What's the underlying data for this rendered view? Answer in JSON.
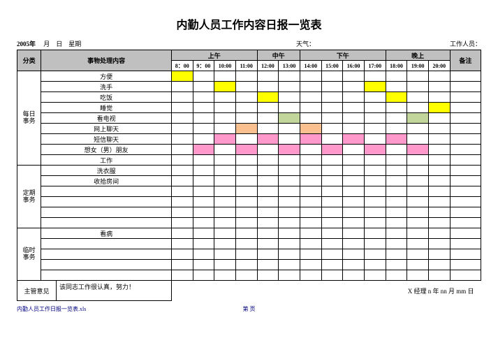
{
  "title": "内勤人员工作内容日报一览表",
  "info": {
    "year_label": "2005年",
    "month_label": "月",
    "day_label": "日",
    "weekday_label": "星期",
    "weather_label": "天气：",
    "staff_label": "工作人员："
  },
  "headers": {
    "category": "分类",
    "content": "事物处理内容",
    "morning": "上午",
    "noon": "中午",
    "afternoon": "下午",
    "evening": "晚上",
    "note": "备注"
  },
  "time_slots": [
    "8：00",
    "9：00",
    "10:00",
    "11:00",
    "12:00",
    "13:00",
    "14:00",
    "15:00",
    "16:00",
    "17:00",
    "18:00",
    "19:00",
    "20:00"
  ],
  "colors": {
    "yellow": "#ffff00",
    "orange": "#fac08f",
    "lightgreen": "#c2d69b",
    "pink": "#ff99cc",
    "headerGray": "#c0c0c0",
    "white": "#ffffff"
  },
  "sections": [
    {
      "label": "每日\n事务",
      "rows": [
        {
          "content": "方便",
          "cells": [
            "yellow",
            "",
            "",
            "",
            "",
            "",
            "",
            "",
            "",
            "",
            "",
            "",
            ""
          ]
        },
        {
          "content": "洗手",
          "cells": [
            "",
            "",
            "yellow",
            "",
            "",
            "",
            "",
            "",
            "",
            "yellow",
            "",
            "",
            ""
          ]
        },
        {
          "content": "吃饭",
          "cells": [
            "",
            "",
            "",
            "",
            "yellow",
            "",
            "",
            "",
            "",
            "",
            "yellow",
            "",
            ""
          ]
        },
        {
          "content": "睡觉",
          "cells": [
            "",
            "",
            "",
            "",
            "",
            "",
            "",
            "",
            "",
            "",
            "",
            "",
            "yellow"
          ]
        },
        {
          "content": "看电视",
          "cells": [
            "",
            "",
            "",
            "",
            "",
            "lightgreen",
            "",
            "",
            "",
            "",
            "",
            "lightgreen",
            ""
          ]
        },
        {
          "content": "网上聊天",
          "cells": [
            "",
            "",
            "",
            "orange",
            "",
            "",
            "orange",
            "",
            "",
            "",
            "",
            "",
            ""
          ]
        },
        {
          "content": "短信聊天",
          "cells": [
            "",
            "",
            "pink",
            "",
            "pink",
            "",
            "pink",
            "",
            "pink",
            "",
            "pink",
            "",
            ""
          ]
        },
        {
          "content": "想女（男）朋友",
          "cells": [
            "",
            "pink",
            "",
            "pink",
            "",
            "pink",
            "",
            "pink",
            "",
            "pink",
            "",
            "pink",
            ""
          ]
        },
        {
          "content": "工作",
          "cells": [
            "",
            "",
            "",
            "",
            "",
            "",
            "",
            "",
            "",
            "",
            "",
            "",
            ""
          ]
        }
      ]
    },
    {
      "label": "定期\n事务",
      "rows": [
        {
          "content": "洗衣服",
          "cells": [
            "",
            "",
            "",
            "",
            "",
            "",
            "",
            "",
            "",
            "",
            "",
            "",
            ""
          ]
        },
        {
          "content": "收拾房间",
          "cells": [
            "",
            "",
            "",
            "",
            "",
            "",
            "",
            "",
            "",
            "",
            "",
            "",
            ""
          ]
        },
        {
          "content": "",
          "cells": [
            "",
            "",
            "",
            "",
            "",
            "",
            "",
            "",
            "",
            "",
            "",
            "",
            ""
          ]
        },
        {
          "content": "",
          "cells": [
            "",
            "",
            "",
            "",
            "",
            "",
            "",
            "",
            "",
            "",
            "",
            "",
            ""
          ]
        },
        {
          "content": "",
          "cells": [
            "",
            "",
            "",
            "",
            "",
            "",
            "",
            "",
            "",
            "",
            "",
            "",
            ""
          ]
        },
        {
          "content": "",
          "cells": [
            "",
            "",
            "",
            "",
            "",
            "",
            "",
            "",
            "",
            "",
            "",
            "",
            ""
          ]
        }
      ]
    },
    {
      "label": "临时\n事务",
      "rows": [
        {
          "content": "看病",
          "cells": [
            "",
            "",
            "",
            "",
            "",
            "",
            "",
            "",
            "",
            "",
            "",
            "",
            ""
          ]
        },
        {
          "content": "",
          "cells": [
            "",
            "",
            "",
            "",
            "",
            "",
            "",
            "",
            "",
            "",
            "",
            "",
            ""
          ]
        },
        {
          "content": "",
          "cells": [
            "",
            "",
            "",
            "",
            "",
            "",
            "",
            "",
            "",
            "",
            "",
            "",
            ""
          ]
        },
        {
          "content": "",
          "cells": [
            "",
            "",
            "",
            "",
            "",
            "",
            "",
            "",
            "",
            "",
            "",
            "",
            ""
          ]
        },
        {
          "content": "",
          "cells": [
            "",
            "",
            "",
            "",
            "",
            "",
            "",
            "",
            "",
            "",
            "",
            "",
            ""
          ]
        }
      ]
    }
  ],
  "supervisor": {
    "label": "主管意见",
    "comment": "该同志工作很认真，努力！",
    "sign": "X 经理   n  年   nn   月   mm   日"
  },
  "footer": {
    "filename": "内勤人员工作日报一览表.xls",
    "page": "第    页"
  }
}
